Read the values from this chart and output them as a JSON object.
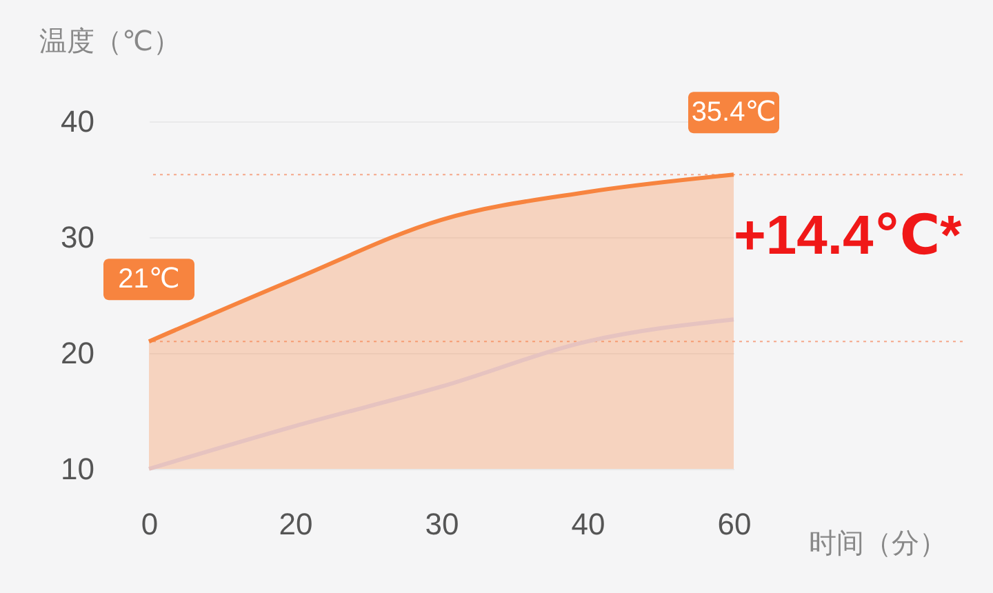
{
  "chart_data": {
    "type": "line",
    "xlabel": "时间（分）",
    "ylabel": "温度（℃）",
    "categories": [
      "0",
      "20",
      "30",
      "40",
      "60"
    ],
    "series": [
      {
        "type": "area",
        "color": "#f7843f",
        "values": [
          21,
          26.4,
          31.5,
          33.9,
          35.4
        ],
        "value_labels": [
          "21℃",
          null,
          null,
          null,
          "35.4℃"
        ]
      },
      {
        "type": "line",
        "color": "#e6c3c0",
        "values": [
          10,
          13.7,
          17.1,
          21.0,
          22.9
        ]
      }
    ],
    "ylim": [
      10,
      40
    ],
    "yticks": [
      10,
      20,
      30,
      40
    ],
    "grid": "y",
    "ref_lines": [
      {
        "axis": "y",
        "value": 21,
        "color": "#f5a88a",
        "line_style": "dotted"
      },
      {
        "axis": "y",
        "value": 35.4,
        "color": "#f5a88a",
        "line_style": "dotted"
      }
    ],
    "annotations": [
      {
        "text": "+14.4℃*",
        "x": "60",
        "y": 30
      }
    ]
  }
}
